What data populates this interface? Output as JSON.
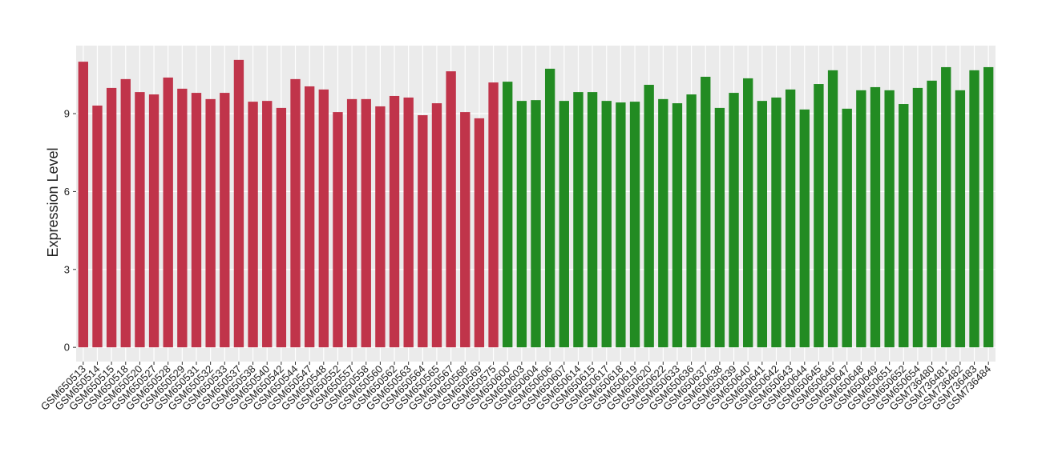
{
  "chart_data": {
    "type": "bar",
    "y_label": "Expression Level",
    "categories": [
      "GSM650513",
      "GSM650514",
      "GSM650515",
      "GSM650518",
      "GSM650520",
      "GSM650527",
      "GSM650528",
      "GSM650529",
      "GSM650531",
      "GSM650532",
      "GSM650533",
      "GSM650537",
      "GSM650538",
      "GSM650540",
      "GSM650542",
      "GSM650544",
      "GSM650547",
      "GSM650548",
      "GSM650552",
      "GSM650557",
      "GSM650558",
      "GSM650560",
      "GSM650562",
      "GSM650563",
      "GSM650564",
      "GSM650565",
      "GSM650567",
      "GSM650568",
      "GSM650569",
      "GSM650575",
      "GSM650600",
      "GSM650603",
      "GSM650604",
      "GSM650606",
      "GSM650607",
      "GSM650614",
      "GSM650615",
      "GSM650617",
      "GSM650618",
      "GSM650619",
      "GSM650620",
      "GSM650622",
      "GSM650633",
      "GSM650636",
      "GSM650637",
      "GSM650638",
      "GSM650639",
      "GSM650640",
      "GSM650641",
      "GSM650642",
      "GSM650643",
      "GSM650644",
      "GSM650645",
      "GSM650646",
      "GSM650647",
      "GSM650648",
      "GSM650649",
      "GSM650651",
      "GSM650652",
      "GSM650654",
      "GSM736480",
      "GSM736481",
      "GSM736482",
      "GSM736483",
      "GSM736484"
    ],
    "values": [
      11.0,
      9.31,
      9.99,
      10.33,
      9.83,
      9.74,
      10.39,
      9.96,
      9.8,
      9.56,
      9.8,
      11.07,
      9.46,
      9.49,
      9.22,
      10.33,
      10.05,
      9.93,
      9.06,
      9.56,
      9.56,
      9.28,
      9.68,
      9.62,
      8.94,
      9.4,
      10.63,
      9.06,
      8.82,
      10.2,
      10.23,
      9.49,
      9.52,
      10.73,
      9.49,
      9.83,
      9.83,
      9.49,
      9.43,
      9.46,
      10.11,
      9.56,
      9.4,
      9.74,
      10.42,
      9.22,
      9.8,
      10.36,
      9.49,
      9.62,
      9.93,
      9.16,
      10.14,
      10.67,
      9.19,
      9.9,
      10.02,
      9.9,
      9.37,
      9.99,
      10.27,
      10.79,
      9.9,
      10.67,
      10.79
    ],
    "colors": [
      "#c0344a",
      "#c0344a",
      "#c0344a",
      "#c0344a",
      "#c0344a",
      "#c0344a",
      "#c0344a",
      "#c0344a",
      "#c0344a",
      "#c0344a",
      "#c0344a",
      "#c0344a",
      "#c0344a",
      "#c0344a",
      "#c0344a",
      "#c0344a",
      "#c0344a",
      "#c0344a",
      "#c0344a",
      "#c0344a",
      "#c0344a",
      "#c0344a",
      "#c0344a",
      "#c0344a",
      "#c0344a",
      "#c0344a",
      "#c0344a",
      "#c0344a",
      "#c0344a",
      "#c0344a",
      "#228b22",
      "#228b22",
      "#228b22",
      "#228b22",
      "#228b22",
      "#228b22",
      "#228b22",
      "#228b22",
      "#228b22",
      "#228b22",
      "#228b22",
      "#228b22",
      "#228b22",
      "#228b22",
      "#228b22",
      "#228b22",
      "#228b22",
      "#228b22",
      "#228b22",
      "#228b22",
      "#228b22",
      "#228b22",
      "#228b22",
      "#228b22",
      "#228b22",
      "#228b22",
      "#228b22",
      "#228b22",
      "#228b22",
      "#228b22",
      "#228b22",
      "#228b22",
      "#228b22",
      "#228b22",
      "#228b22"
    ],
    "ylim": [
      -0.55,
      11.62
    ],
    "yticks": [
      0,
      3,
      6,
      9
    ],
    "grid": true
  }
}
